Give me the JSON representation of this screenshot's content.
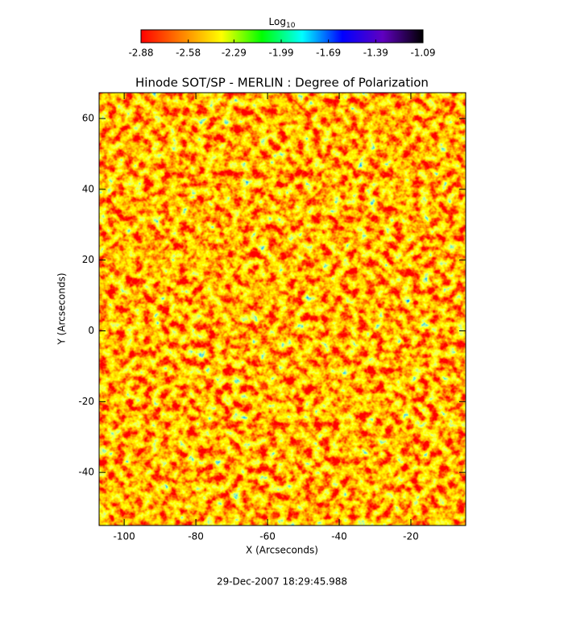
{
  "chart_data": {
    "type": "heatmap",
    "title": "Hinode SOT/SP - MERLIN : Degree of Polarization",
    "xlabel": "X (Arcseconds)",
    "ylabel": "Y (Arcseconds)",
    "xlim": [
      -107,
      -4.7
    ],
    "ylim": [
      -55,
      67.3
    ],
    "xticks": [
      -100,
      -80,
      -60,
      -40,
      -20
    ],
    "yticks": [
      -40,
      -20,
      0,
      20,
      40,
      60
    ],
    "colorbar": {
      "label": "Log",
      "label_subscript": "10",
      "lim": [
        -2.88,
        -1.09
      ],
      "ticks": [
        -2.88,
        -2.58,
        -2.29,
        -1.99,
        -1.69,
        -1.39,
        -1.09
      ],
      "colormap": [
        "#ff0000",
        "#ff8000",
        "#ffff00",
        "#00ff00",
        "#00ffff",
        "#0000ff",
        "#6000c0",
        "#000000"
      ]
    },
    "footer": "29-Dec-2007 18:29:45.988"
  }
}
